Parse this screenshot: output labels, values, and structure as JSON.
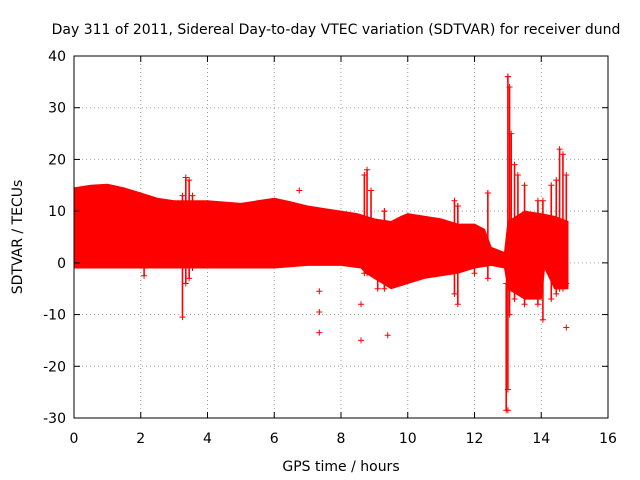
{
  "chart_data": {
    "type": "scatter",
    "title": "Day 311 of 2011, Sidereal Day-to-day VTEC variation (SDTVAR) for receiver dund",
    "xlabel": "GPS time / hours",
    "ylabel": "SDTVAR / TECUs",
    "xlim": [
      0,
      16
    ],
    "ylim": [
      -30,
      40
    ],
    "xticks": [
      0,
      2,
      4,
      6,
      8,
      10,
      12,
      14,
      16
    ],
    "yticks": [
      -30,
      -20,
      -10,
      0,
      10,
      20,
      30,
      40
    ],
    "grid": true,
    "color": "#ff0000",
    "series": [
      {
        "name": "SDTVAR",
        "envelope_upper": [
          [
            0,
            14.5
          ],
          [
            0.5,
            15
          ],
          [
            1,
            15.2
          ],
          [
            1.5,
            14.5
          ],
          [
            2,
            13.5
          ],
          [
            2.5,
            12.5
          ],
          [
            3,
            12
          ],
          [
            3.3,
            12
          ],
          [
            3.6,
            12
          ],
          [
            4,
            12
          ],
          [
            5,
            11.5
          ],
          [
            5.5,
            12
          ],
          [
            6,
            12.5
          ],
          [
            6.5,
            11.8
          ],
          [
            7,
            11
          ],
          [
            7.5,
            10.5
          ],
          [
            8,
            10
          ],
          [
            8.5,
            9.5
          ],
          [
            8.75,
            9
          ],
          [
            9,
            8.5
          ],
          [
            9.5,
            8
          ],
          [
            9.8,
            9
          ],
          [
            10,
            9.5
          ],
          [
            10.5,
            9
          ],
          [
            11,
            8.5
          ],
          [
            11.5,
            7.5
          ],
          [
            12,
            7.5
          ],
          [
            12.3,
            6.5
          ],
          [
            12.5,
            3
          ],
          [
            12.9,
            2
          ],
          [
            13,
            8
          ],
          [
            13.5,
            10
          ],
          [
            14,
            9.5
          ],
          [
            14.4,
            9
          ],
          [
            14.8,
            8
          ]
        ],
        "envelope_lower": [
          [
            0,
            -1
          ],
          [
            1,
            -1
          ],
          [
            2,
            -1
          ],
          [
            3,
            -1
          ],
          [
            4,
            -1
          ],
          [
            5,
            -1
          ],
          [
            6,
            -1
          ],
          [
            7,
            -0.5
          ],
          [
            8,
            -0.5
          ],
          [
            8.6,
            -1
          ],
          [
            8.75,
            -2
          ],
          [
            9,
            -3
          ],
          [
            9.5,
            -5
          ],
          [
            10,
            -4
          ],
          [
            10.5,
            -3
          ],
          [
            11,
            -2.5
          ],
          [
            11.5,
            -2
          ],
          [
            12,
            -1
          ],
          [
            12.5,
            -0.5
          ],
          [
            12.9,
            -1
          ],
          [
            13,
            -5
          ],
          [
            13.5,
            -7
          ],
          [
            14,
            -7
          ],
          [
            14.1,
            -1
          ],
          [
            14.4,
            -5
          ],
          [
            14.8,
            -5
          ]
        ],
        "spikes": [
          {
            "x": 2.1,
            "min": -2.5,
            "max": 0
          },
          {
            "x": 3.25,
            "min": -10.5,
            "max": 13
          },
          {
            "x": 3.35,
            "min": -4,
            "max": 16.5
          },
          {
            "x": 3.45,
            "min": -3,
            "max": 16
          },
          {
            "x": 3.55,
            "min": -1,
            "max": 13
          },
          {
            "x": 8.7,
            "min": -2,
            "max": 17
          },
          {
            "x": 8.78,
            "min": -2,
            "max": 18
          },
          {
            "x": 8.9,
            "min": -2,
            "max": 14
          },
          {
            "x": 9.1,
            "min": -5,
            "max": 7
          },
          {
            "x": 9.3,
            "min": -5,
            "max": 10
          },
          {
            "x": 11.4,
            "min": -6,
            "max": 12
          },
          {
            "x": 11.5,
            "min": -8,
            "max": 11
          },
          {
            "x": 12.0,
            "min": -2,
            "max": 0
          },
          {
            "x": 12.4,
            "min": -3,
            "max": 13.5
          },
          {
            "x": 12.95,
            "min": -28.5,
            "max": -4
          },
          {
            "x": 13.0,
            "min": -24.5,
            "max": 36
          },
          {
            "x": 13.05,
            "min": -10,
            "max": 34
          },
          {
            "x": 13.1,
            "min": -5,
            "max": 25
          },
          {
            "x": 13.2,
            "min": -7,
            "max": 19
          },
          {
            "x": 13.3,
            "min": -5,
            "max": 17
          },
          {
            "x": 13.5,
            "min": -8,
            "max": 15
          },
          {
            "x": 13.9,
            "min": -8,
            "max": 12
          },
          {
            "x": 14.05,
            "min": -11,
            "max": 12
          },
          {
            "x": 14.3,
            "min": -7,
            "max": 15
          },
          {
            "x": 14.45,
            "min": -6,
            "max": 16
          },
          {
            "x": 14.55,
            "min": -5,
            "max": 22
          },
          {
            "x": 14.65,
            "min": -5,
            "max": 21
          },
          {
            "x": 14.75,
            "min": -4,
            "max": 17
          }
        ],
        "outliers": [
          {
            "x": 6.75,
            "y": 14
          },
          {
            "x": 7.35,
            "y": -5.5
          },
          {
            "x": 7.35,
            "y": -9.5
          },
          {
            "x": 7.35,
            "y": -13.5
          },
          {
            "x": 8.6,
            "y": -8
          },
          {
            "x": 8.6,
            "y": -15
          },
          {
            "x": 9.4,
            "y": -14
          },
          {
            "x": 9.3,
            "y": 10
          },
          {
            "x": 11.5,
            "y": 11
          },
          {
            "x": 12.4,
            "y": 13.5
          },
          {
            "x": 14.75,
            "y": -12.5
          },
          {
            "x": 13.0,
            "y": -28.5
          },
          {
            "x": 13.0,
            "y": 36
          }
        ]
      }
    ]
  }
}
